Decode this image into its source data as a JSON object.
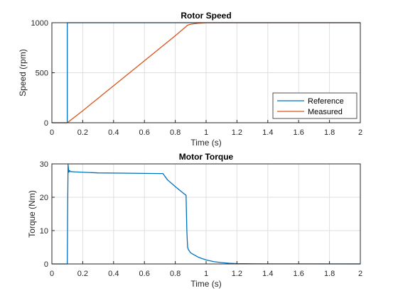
{
  "chart_data": [
    {
      "type": "line",
      "title": "Rotor Speed",
      "xlabel": "Time (s)",
      "ylabel": "Speed (rpm)",
      "xlim": [
        0,
        2
      ],
      "ylim": [
        0,
        1000
      ],
      "xticks": [
        "0",
        "0.2",
        "0.4",
        "0.6",
        "0.8",
        "1",
        "1.2",
        "1.4",
        "1.6",
        "1.8",
        "2"
      ],
      "yticks": [
        "0",
        "500",
        "1000"
      ],
      "grid": true,
      "legend": "bottom-right",
      "series": [
        {
          "name": "Reference",
          "color": "#0072BD",
          "x": [
            0,
            0.1,
            0.1,
            2
          ],
          "y": [
            0,
            0,
            1000,
            1000
          ]
        },
        {
          "name": "Measured",
          "color": "#D95319",
          "x": [
            0,
            0.1,
            0.2,
            0.3,
            0.4,
            0.5,
            0.6,
            0.7,
            0.8,
            0.85,
            0.88,
            0.9,
            0.95,
            1.0,
            1.2,
            1.6,
            2.0
          ],
          "y": [
            0,
            0,
            120,
            245,
            370,
            495,
            620,
            745,
            870,
            935,
            975,
            985,
            995,
            1000,
            1000,
            1000,
            1000
          ]
        }
      ]
    },
    {
      "type": "line",
      "title": "Motor Torque",
      "xlabel": "Time (s)",
      "ylabel": "Torque (Nm)",
      "xlim": [
        0,
        2
      ],
      "ylim": [
        0,
        30
      ],
      "xticks": [
        "0",
        "0.2",
        "0.4",
        "0.6",
        "0.8",
        "1",
        "1.2",
        "1.4",
        "1.6",
        "1.8",
        "2"
      ],
      "yticks": [
        "0",
        "10",
        "20",
        "30"
      ],
      "grid": true,
      "series": [
        {
          "color": "#0072BD",
          "x": [
            0,
            0.1,
            0.102,
            0.105,
            0.11,
            0.115,
            0.12,
            0.15,
            0.3,
            0.5,
            0.7,
            0.72,
            0.75,
            0.8,
            0.85,
            0.87,
            0.875,
            0.88,
            0.885,
            0.9,
            0.95,
            1.0,
            1.05,
            1.1,
            1.15,
            1.2,
            1.3,
            1.5,
            2.0
          ],
          "y": [
            0,
            0,
            15,
            29.8,
            27.5,
            28,
            27.7,
            27.6,
            27.3,
            27.2,
            27.1,
            27.1,
            25.2,
            23.2,
            21.3,
            20.6,
            10,
            5,
            4.3,
            3.3,
            2.0,
            1.2,
            0.7,
            0.4,
            0.2,
            0.1,
            0.05,
            0.02,
            0.01
          ]
        }
      ]
    }
  ]
}
